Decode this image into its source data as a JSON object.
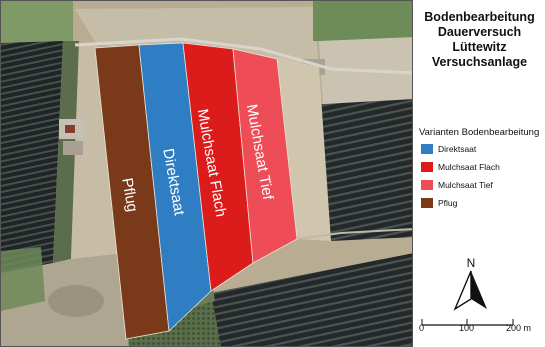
{
  "title": {
    "lines": [
      "Bodenbearbeitung",
      "Dauerversuch",
      "Lüttewitz",
      "Versuchsanlage"
    ]
  },
  "legend": {
    "title": "Varianten Bodenbearbeitung",
    "items": [
      {
        "label": "Direktsaat",
        "color": "#2f7ec3"
      },
      {
        "label": "Mulchsaat Flach",
        "color": "#dc1b1b"
      },
      {
        "label": "Mulchsaat Tief",
        "color": "#ee4d57"
      },
      {
        "label": "Pflug",
        "color": "#7a3a1a"
      }
    ]
  },
  "plots": [
    {
      "label": "Pflug",
      "color": "#7a3a1a"
    },
    {
      "label": "Direktsaat",
      "color": "#2f7ec3"
    },
    {
      "label": "Mulchsaat Flach",
      "color": "#dc1b1b"
    },
    {
      "label": "Mulchsaat Tief",
      "color": "#ee4d57"
    }
  ],
  "north_arrow": {
    "label": "N"
  },
  "scale_bar": {
    "labels": [
      "0",
      "100",
      "200 m"
    ]
  }
}
